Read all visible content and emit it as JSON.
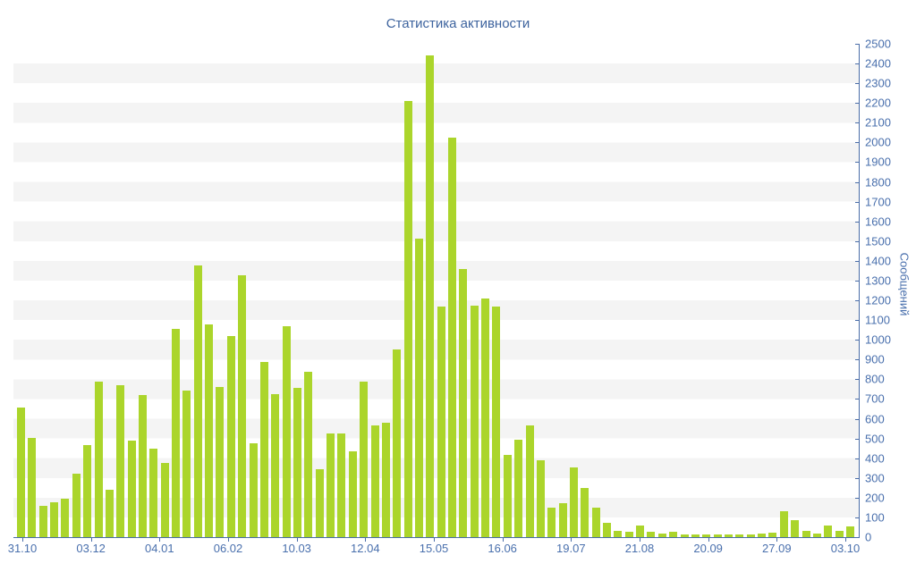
{
  "title": "Статистика активности",
  "colors": {
    "bar": "#abd52b",
    "axis_line": "#4a6da8",
    "tick_label": "#4a70ad",
    "title": "#3d639e",
    "stripe": "#f4f4f4"
  },
  "chart_data": {
    "type": "bar",
    "title": "Статистика активности",
    "ylabel": "Сообщений",
    "xlabel": "",
    "ylim": [
      0,
      2500
    ],
    "y_tick_step": 100,
    "y_tick_labels": [
      "0",
      "100",
      "200",
      "300",
      "400",
      "500",
      "600",
      "700",
      "800",
      "900",
      "1000",
      "1100",
      "1200",
      "1300",
      "1400",
      "1500",
      "1600",
      "1700",
      "1800",
      "1900",
      "2000",
      "2100",
      "2200",
      "2300",
      "2400",
      "2500"
    ],
    "x_tick_labels": [
      "31.10",
      "03.12",
      "04.01",
      "06.02",
      "10.03",
      "12.04",
      "15.05",
      "16.06",
      "19.07",
      "21.08",
      "20.09",
      "27.09",
      "03.10"
    ],
    "grid": "alternating-horizontal-bands",
    "legend": "none",
    "axis_position": "right",
    "values": [
      655,
      505,
      160,
      175,
      195,
      320,
      465,
      790,
      240,
      770,
      490,
      720,
      450,
      377,
      1055,
      745,
      1377,
      1077,
      760,
      1020,
      1327,
      477,
      890,
      723,
      1068,
      755,
      837,
      345,
      527,
      527,
      436,
      786,
      568,
      581,
      950,
      2210,
      1515,
      2440,
      1170,
      2025,
      1360,
      1175,
      1210,
      1170,
      418,
      492,
      568,
      391,
      149,
      174,
      353,
      247,
      149,
      73,
      32,
      28,
      58,
      27,
      18,
      27,
      12,
      15,
      12,
      12,
      15,
      12,
      15,
      18,
      24,
      130,
      85,
      30,
      20,
      58,
      30,
      53
    ]
  }
}
